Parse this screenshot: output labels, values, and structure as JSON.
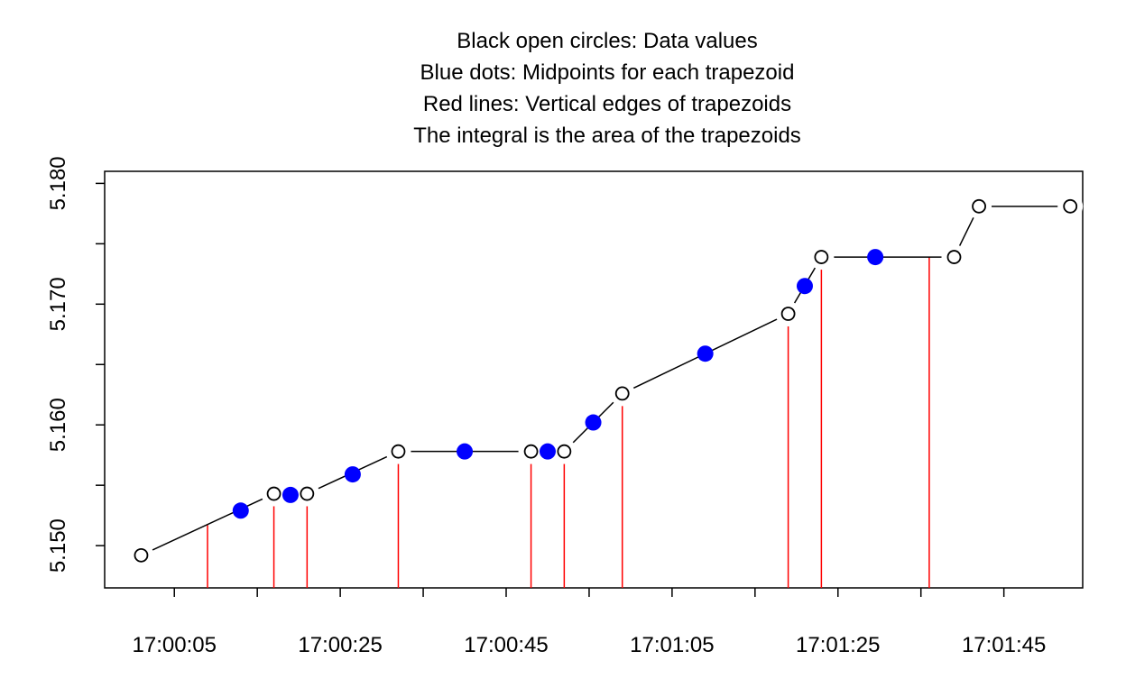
{
  "chart_data": {
    "type": "trapezoid",
    "title_lines": [
      "Black open circles:  Data values",
      "Blue dots: Midpoints for each trapezoid",
      "Red lines: Vertical edges of trapezoids",
      "The integral is the area of the trapezoids"
    ],
    "points": {
      "color": "#000000",
      "x": [
        "17:00:01",
        "17:00:17",
        "17:00:21",
        "17:00:32",
        "17:00:48",
        "17:00:52",
        "17:00:59",
        "17:01:19",
        "17:01:23",
        "17:01:39",
        "17:01:42",
        "17:01:53"
      ],
      "values": [
        5.1492,
        5.1543,
        5.1543,
        5.1578,
        5.1578,
        5.1578,
        5.1626,
        5.1692,
        5.1739,
        5.1739,
        5.1781,
        5.1781
      ]
    },
    "edges": {
      "color": "#ff0000",
      "x": [
        "17:00:09",
        "17:00:17",
        "17:00:21",
        "17:00:32",
        "17:00:48",
        "17:00:52",
        "17:00:59",
        "17:01:19",
        "17:01:23",
        "17:01:36"
      ],
      "values": [
        5.1517,
        5.1543,
        5.1543,
        5.1578,
        5.1578,
        5.1578,
        5.1626,
        5.1692,
        5.1739,
        5.1739
      ]
    },
    "midpoints": {
      "color": "#0000ff",
      "x": [
        "17:00:13",
        "17:00:19",
        "17:00:26.5",
        "17:00:40",
        "17:00:50",
        "17:00:55.5",
        "17:01:09",
        "17:01:21",
        "17:01:29.5"
      ],
      "values": [
        5.1529,
        5.1542,
        5.1559,
        5.1578,
        5.1578,
        5.1602,
        5.1659,
        5.1715,
        5.1739
      ]
    },
    "xlim": [
      "16:59:56.6",
      "17:01:54.5"
    ],
    "xticks": [
      "17:00:05",
      {
        "value": "17:00:15",
        "label": null
      },
      "17:00:25",
      {
        "value": "17:00:35",
        "label": null
      },
      "17:00:45",
      {
        "value": "17:00:55",
        "label": null
      },
      "17:01:05",
      {
        "value": "17:01:15",
        "label": null
      },
      "17:01:25",
      {
        "value": "17:01:35",
        "label": null
      },
      "17:01:45"
    ],
    "ylim": [
      5.1465,
      5.181
    ],
    "yticks": [
      {
        "value": 5.15,
        "label": "5.150"
      },
      {
        "value": 5.155,
        "label": null
      },
      {
        "value": 5.16,
        "label": "5.160"
      },
      {
        "value": 5.165,
        "label": null
      },
      {
        "value": 5.17,
        "label": "5.170"
      },
      {
        "value": 5.175,
        "label": null
      },
      {
        "value": 5.18,
        "label": "5.180"
      }
    ]
  }
}
